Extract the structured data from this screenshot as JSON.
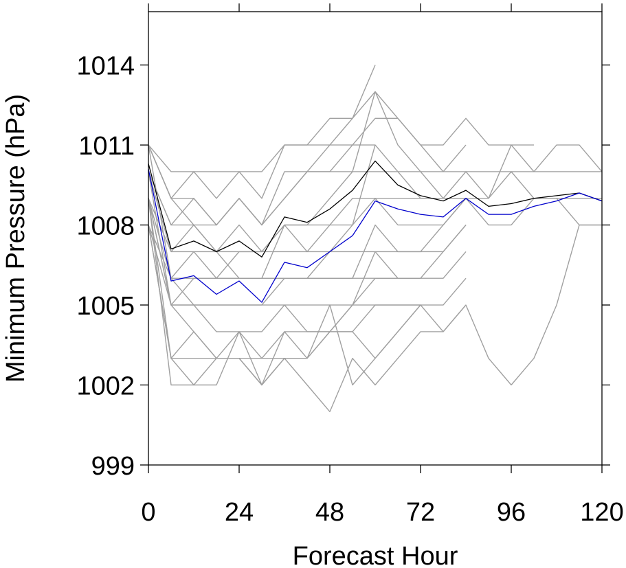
{
  "chart_data": {
    "type": "line",
    "title": "",
    "xlabel": "Forecast Hour",
    "ylabel": "Minimum Pressure (hPa)",
    "xlim": [
      0,
      120
    ],
    "ylim": [
      999,
      1016
    ],
    "xticks": [
      0,
      24,
      48,
      72,
      96,
      120
    ],
    "yticks": [
      999,
      1002,
      1005,
      1008,
      1011,
      1014
    ],
    "grid": false,
    "legend": "none",
    "colors": {
      "members": "#a0a0a0",
      "black_line": "#000000",
      "blue_line": "#0000cc"
    },
    "series": [
      {
        "color": "black",
        "x": [
          0,
          6,
          12,
          18,
          24,
          30,
          36,
          42,
          48,
          54,
          60,
          66,
          72,
          78,
          84,
          90,
          96,
          102,
          108,
          114,
          120
        ],
        "y": [
          1010.3,
          1007.1,
          1007.4,
          1007.0,
          1007.4,
          1006.8,
          1008.3,
          1008.1,
          1008.6,
          1009.3,
          1010.4,
          1009.5,
          1009.1,
          1008.9,
          1009.3,
          1008.7,
          1008.8,
          1009.0,
          1009.1,
          1009.2,
          1008.9
        ]
      },
      {
        "color": "blue",
        "x": [
          0,
          6,
          12,
          18,
          24,
          30,
          36,
          42,
          48,
          54,
          60,
          66,
          72,
          78,
          84,
          90,
          96,
          102,
          108,
          114,
          120
        ],
        "y": [
          1010.1,
          1005.9,
          1006.1,
          1005.4,
          1005.9,
          1005.1,
          1006.6,
          1006.4,
          1007.0,
          1007.6,
          1008.9,
          1008.6,
          1008.4,
          1008.3,
          1009.0,
          1008.4,
          1008.4,
          1008.7,
          1008.9,
          1009.2,
          1008.9
        ]
      },
      {
        "color": "gray",
        "x": [
          0,
          6,
          12,
          18,
          24,
          30,
          36,
          42,
          48,
          54,
          60
        ],
        "y": [
          1011,
          1010,
          1010,
          1010,
          1010,
          1010,
          1011,
          1011,
          1011,
          1012,
          1014
        ]
      },
      {
        "color": "gray",
        "x": [
          0,
          6,
          12,
          18,
          24,
          30,
          36,
          42,
          48,
          54,
          60,
          66,
          72,
          78,
          84
        ],
        "y": [
          1011,
          1009,
          1010,
          1009,
          1010,
          1009,
          1011,
          1011,
          1012,
          1012,
          1013,
          1012,
          1011,
          1010,
          1011
        ]
      },
      {
        "color": "gray",
        "x": [
          0,
          6,
          12,
          18,
          24,
          30,
          36,
          42,
          48,
          54,
          60,
          66,
          72,
          78,
          84,
          90,
          96,
          102
        ],
        "y": [
          1011,
          1009,
          1009,
          1008,
          1009,
          1008,
          1010,
          1010,
          1011,
          1011,
          1012,
          1012,
          1011,
          1011,
          1012,
          1011,
          1011,
          1011
        ]
      },
      {
        "color": "gray",
        "x": [
          0,
          6,
          12,
          18,
          24,
          30,
          36,
          42,
          48,
          54,
          60,
          66,
          72,
          78,
          84,
          90,
          96,
          102,
          108,
          114,
          120
        ],
        "y": [
          1010,
          1008,
          1009,
          1008,
          1009,
          1008,
          1009,
          1010,
          1010,
          1011,
          1011,
          1010,
          1010,
          1010,
          1010,
          1010,
          1010,
          1010,
          1010,
          1010,
          1010
        ]
      },
      {
        "color": "gray",
        "x": [
          0,
          6,
          12,
          18,
          24,
          30,
          36,
          42,
          48,
          54,
          60,
          66,
          72,
          78,
          84,
          90,
          96,
          102,
          108,
          114,
          120
        ],
        "y": [
          1011,
          1009,
          1008,
          1008,
          1009,
          1008,
          1009,
          1010,
          1010,
          1010,
          1013,
          1011,
          1010,
          1009,
          1010,
          1009,
          1011,
          1010,
          1011,
          1011,
          1010
        ]
      },
      {
        "color": "gray",
        "x": [
          0,
          6,
          12,
          18,
          24,
          30,
          36,
          42,
          48,
          54,
          60,
          66,
          72,
          78,
          84,
          90,
          96,
          102,
          108,
          114,
          120
        ],
        "y": [
          1010,
          1008,
          1008,
          1007,
          1008,
          1007,
          1008,
          1008,
          1009,
          1010,
          1010,
          1010,
          1009,
          1009,
          1009,
          1009,
          1010,
          1009,
          1009,
          1008,
          1008
        ]
      },
      {
        "color": "gray",
        "x": [
          0,
          6,
          12,
          18,
          24,
          30,
          36,
          42,
          48,
          54,
          60,
          66,
          72,
          78,
          84
        ],
        "y": [
          1009,
          1007,
          1008,
          1007,
          1007,
          1007,
          1008,
          1008,
          1008,
          1009,
          1009,
          1008,
          1008,
          1008,
          1009
        ]
      },
      {
        "color": "gray",
        "x": [
          0,
          6,
          12,
          18,
          24,
          30,
          36,
          42,
          48,
          54,
          60,
          66,
          72,
          78,
          84,
          90,
          96,
          102,
          108,
          114,
          120
        ],
        "y": [
          1010,
          1007,
          1007,
          1006,
          1007,
          1007,
          1007,
          1007,
          1008,
          1008,
          1009,
          1009,
          1009,
          1009,
          1009,
          1008,
          1008,
          1009,
          1009,
          1009,
          1009
        ]
      },
      {
        "color": "gray",
        "x": [
          0,
          6,
          12,
          18,
          24,
          30,
          36,
          42,
          48,
          54,
          60,
          66,
          72,
          78,
          84
        ],
        "y": [
          1009,
          1006,
          1006,
          1006,
          1006,
          1006,
          1006,
          1006,
          1007,
          1007,
          1007,
          1007,
          1007,
          1007,
          1008
        ]
      },
      {
        "color": "gray",
        "x": [
          0,
          6,
          12,
          18,
          24,
          30,
          36,
          42,
          48,
          54,
          60
        ],
        "y": [
          1011,
          1006,
          1007,
          1007,
          1006,
          1006,
          1008,
          1007,
          1007,
          1008,
          1011
        ]
      },
      {
        "color": "gray",
        "x": [
          0,
          6,
          12,
          18,
          24,
          30,
          36,
          42,
          48,
          54,
          60,
          66,
          72,
          78,
          84
        ],
        "y": [
          1009,
          1005,
          1006,
          1006,
          1006,
          1006,
          1006,
          1006,
          1006,
          1006,
          1008,
          1007,
          1007,
          1008,
          1009
        ]
      },
      {
        "color": "gray",
        "x": [
          0,
          6,
          12,
          18,
          24,
          30,
          36,
          42,
          48,
          54,
          60,
          66,
          72,
          78,
          84
        ],
        "y": [
          1008,
          1006,
          1005,
          1005,
          1005,
          1005,
          1006,
          1006,
          1006,
          1006,
          1006,
          1006,
          1006,
          1006,
          1007
        ]
      },
      {
        "color": "gray",
        "x": [
          0,
          6,
          12,
          18,
          24,
          30,
          36,
          42,
          48,
          54,
          60,
          66,
          72
        ],
        "y": [
          1010,
          1005,
          1005,
          1005,
          1005,
          1005,
          1005,
          1005,
          1005,
          1005,
          1007,
          1006,
          1006
        ]
      },
      {
        "color": "gray",
        "x": [
          0,
          6,
          12,
          18,
          24,
          30,
          36,
          42,
          48,
          54,
          60,
          66,
          72,
          78,
          84
        ],
        "y": [
          1008,
          1005,
          1005,
          1004,
          1004,
          1004,
          1005,
          1004,
          1004,
          1005,
          1006,
          1006,
          1006,
          1007,
          1008
        ]
      },
      {
        "color": "gray",
        "x": [
          0,
          6,
          12,
          18,
          24,
          30,
          36,
          42,
          48,
          54,
          60,
          66,
          72,
          78,
          84,
          90,
          96,
          102,
          108,
          114,
          120
        ],
        "y": [
          1009,
          1005,
          1004,
          1003,
          1004,
          1003,
          1004,
          1004,
          1004,
          1005,
          1005,
          1005,
          1005,
          1004,
          1005,
          1003,
          1002,
          1003,
          1005,
          1008,
          1008
        ]
      },
      {
        "color": "gray",
        "x": [
          0,
          6,
          12,
          18,
          24,
          30,
          36,
          42,
          48,
          54,
          60,
          66,
          72
        ],
        "y": [
          1008,
          1003,
          1004,
          1003,
          1003,
          1003,
          1003,
          1003,
          1004,
          1004,
          1005,
          1005,
          1005
        ]
      },
      {
        "color": "gray",
        "x": [
          0,
          6,
          12,
          18,
          24,
          30,
          36,
          42,
          48,
          54,
          60,
          66,
          72
        ],
        "y": [
          1008,
          1003,
          1003,
          1003,
          1003,
          1002,
          1003,
          1003,
          1004,
          1004,
          1003,
          1004,
          1005
        ]
      },
      {
        "color": "gray",
        "x": [
          0,
          6,
          12,
          18,
          24,
          30,
          36,
          42,
          48,
          54,
          60,
          66,
          72,
          78,
          84
        ],
        "y": [
          1009,
          1003,
          1002,
          1003,
          1003,
          1002,
          1003,
          1002,
          1001,
          1003,
          1002,
          1003,
          1004,
          1004,
          1005
        ]
      },
      {
        "color": "gray",
        "x": [
          0,
          6,
          12,
          18,
          24,
          30,
          36,
          42,
          48,
          54,
          60,
          66,
          72,
          78,
          84
        ],
        "y": [
          1009,
          1002,
          1002,
          1002,
          1004,
          1002,
          1004,
          1003,
          1005,
          1002,
          1003,
          1004,
          1005,
          1005,
          1006
        ]
      }
    ]
  }
}
